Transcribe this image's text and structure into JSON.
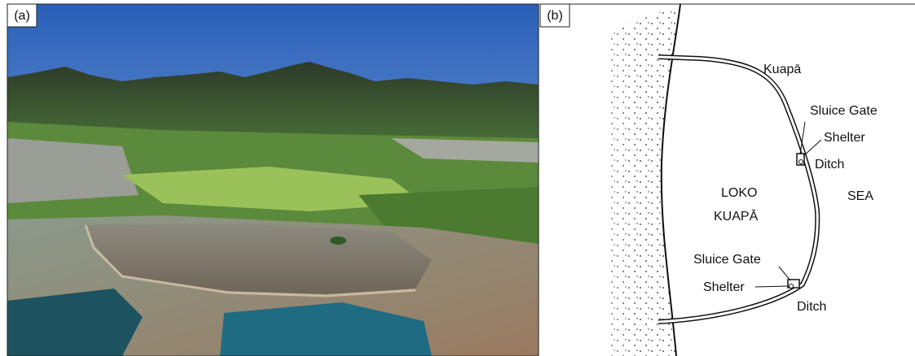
{
  "panels": [
    {
      "label": "(a)"
    },
    {
      "label": "(b)",
      "labels": {
        "wall": "Kuapā",
        "upper_gate": "Sluice Gate",
        "upper_shelter": "Shelter",
        "upper_ditch": "Ditch",
        "pond_line1": "LOKO",
        "pond_line2": "KUAPĀ",
        "sea": "SEA",
        "lower_gate": "Sluice Gate",
        "lower_shelter": "Shelter",
        "lower_ditch": "Ditch"
      }
    }
  ]
}
